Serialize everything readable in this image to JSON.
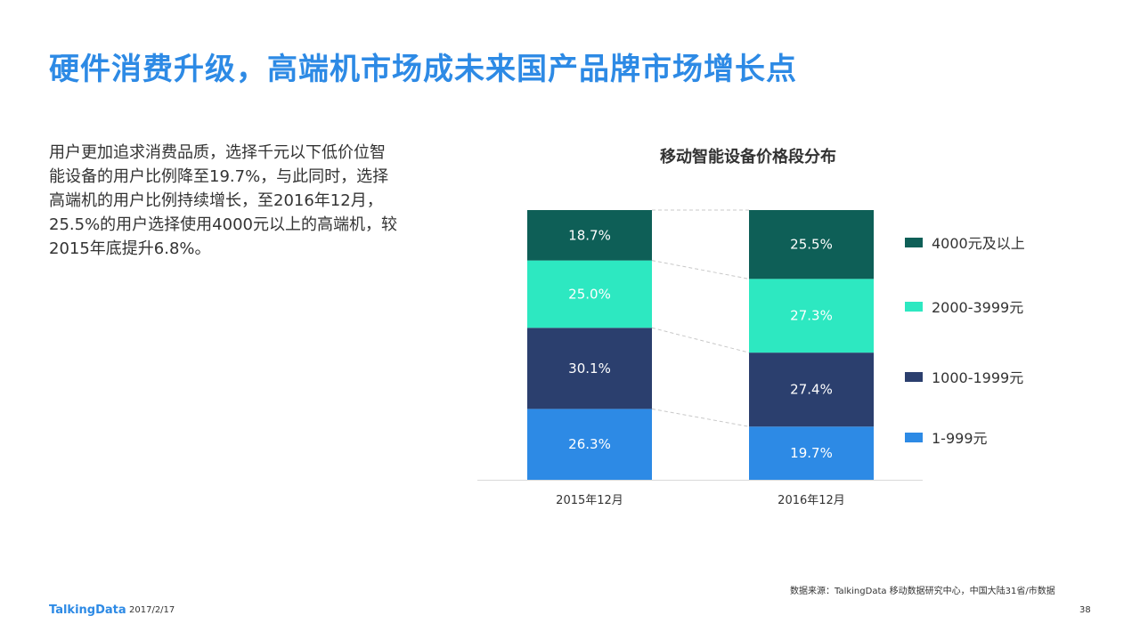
{
  "title": "硬件消费升级，高端机市场成未来国产品牌市场增长点",
  "body_text": "用户更加追求消费品质，选择千元以下低价位智能设备的用户比例降至19.7%，与此同时，选择高端机的用户比例持续增长，至2016年12月，25.5%的用户选择使用4000元以上的高端机，较2015年底提升6.8%。",
  "chart_data": {
    "type": "bar",
    "stacked": true,
    "percent_stacked": true,
    "title": "移动智能设备价格段分布",
    "categories": [
      "2015年12月",
      "2016年12月"
    ],
    "series": [
      {
        "name": "1-999元",
        "values": [
          26.3,
          19.7
        ],
        "color": "#2d8ae5",
        "labels": [
          "26.3%",
          "19.7%"
        ]
      },
      {
        "name": "1000-1999元",
        "values": [
          30.1,
          27.4
        ],
        "color": "#2b3f6e",
        "labels": [
          "30.1%",
          "27.4%"
        ]
      },
      {
        "name": "2000-3999元",
        "values": [
          25.0,
          27.3
        ],
        "color": "#2de8c1",
        "labels": [
          "25.0%",
          "27.3%"
        ]
      },
      {
        "name": "4000元及以上",
        "values": [
          18.7,
          25.5
        ],
        "color": "#0e5f57",
        "labels": [
          "18.7%",
          "25.5%"
        ]
      }
    ],
    "legend_position": "right",
    "legend_order": [
      "4000元及以上",
      "2000-3999元",
      "1000-1999元",
      "1-999元"
    ],
    "connector_lines": "dashed",
    "grid": false
  },
  "footer": {
    "source": "数据来源：TalkingData 移动数据研究中心，中国大陆31省/市数据",
    "logo": "TalkingData",
    "date": "2017/2/17",
    "page": "38"
  }
}
